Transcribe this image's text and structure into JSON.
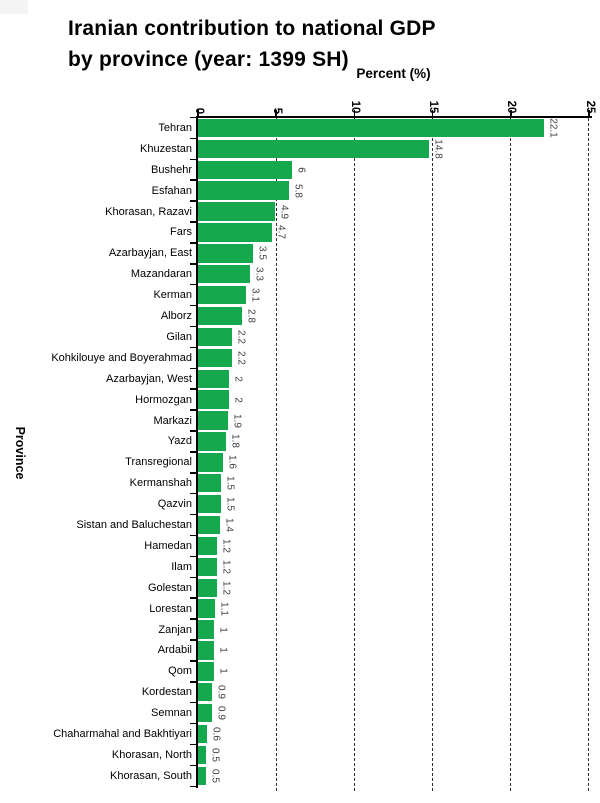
{
  "colors": {
    "background": "#ffffff",
    "bar": "#16a84c",
    "axis": "#000000",
    "gridline": "#2e2e2e",
    "value_label": "#3f3f3f"
  },
  "chart_data": {
    "type": "bar",
    "orientation": "horizontal",
    "title_lines": [
      "Iranian contribution to national GDP",
      "by province (year: 1399 SH)"
    ],
    "xlabel": "Percent (%)",
    "ylabel": "Province",
    "xlim": [
      0,
      25
    ],
    "xticks": [
      "0",
      "5",
      "10",
      "15",
      "20",
      "25"
    ],
    "grid": "vertical-dashed",
    "legend": "none",
    "categories": [
      "Tehran",
      "Khuzestan",
      "Bushehr",
      "Esfahan",
      "Khorasan, Razavi",
      "Fars",
      "Azarbayjan, East",
      "Mazandaran",
      "Kerman",
      "Alborz",
      "Gilan",
      "Kohkilouye and Boyerahmad",
      "Azarbayjan, West",
      "Hormozgan",
      "Markazi",
      "Yazd",
      "Transregional",
      "Kermanshah",
      "Qazvin",
      "Sistan and Baluchestan",
      "Hamedan",
      "Ilam",
      "Golestan",
      "Lorestan",
      "Zanjan",
      "Ardabil",
      "Qom",
      "Kordestan",
      "Semnan",
      "Chaharmahal and Bakhtiyari",
      "Khorasan, North",
      "Khorasan, South"
    ],
    "values": [
      22.1,
      14.8,
      6,
      5.8,
      4.9,
      4.7,
      3.5,
      3.3,
      3.1,
      2.8,
      2.2,
      2.2,
      2,
      2,
      1.9,
      1.8,
      1.6,
      1.5,
      1.5,
      1.4,
      1.2,
      1.2,
      1.2,
      1.1,
      1,
      1,
      1,
      0.9,
      0.9,
      0.6,
      0.5,
      0.5
    ],
    "value_labels": [
      "22.1",
      "14.8",
      "6",
      "5.8",
      "4.9",
      "4.7",
      "3.5",
      "3.3",
      "3.1",
      "2.8",
      "2.2",
      "2.2",
      "2",
      "2",
      "1.9",
      "1.8",
      "1.6",
      "1.5",
      "1.5",
      "1.4",
      "1.2",
      "1.2",
      "1.2",
      "1.1",
      "1",
      "1",
      "1",
      "0.9",
      "0.9",
      "0.6",
      "0.5",
      "0.5"
    ]
  }
}
